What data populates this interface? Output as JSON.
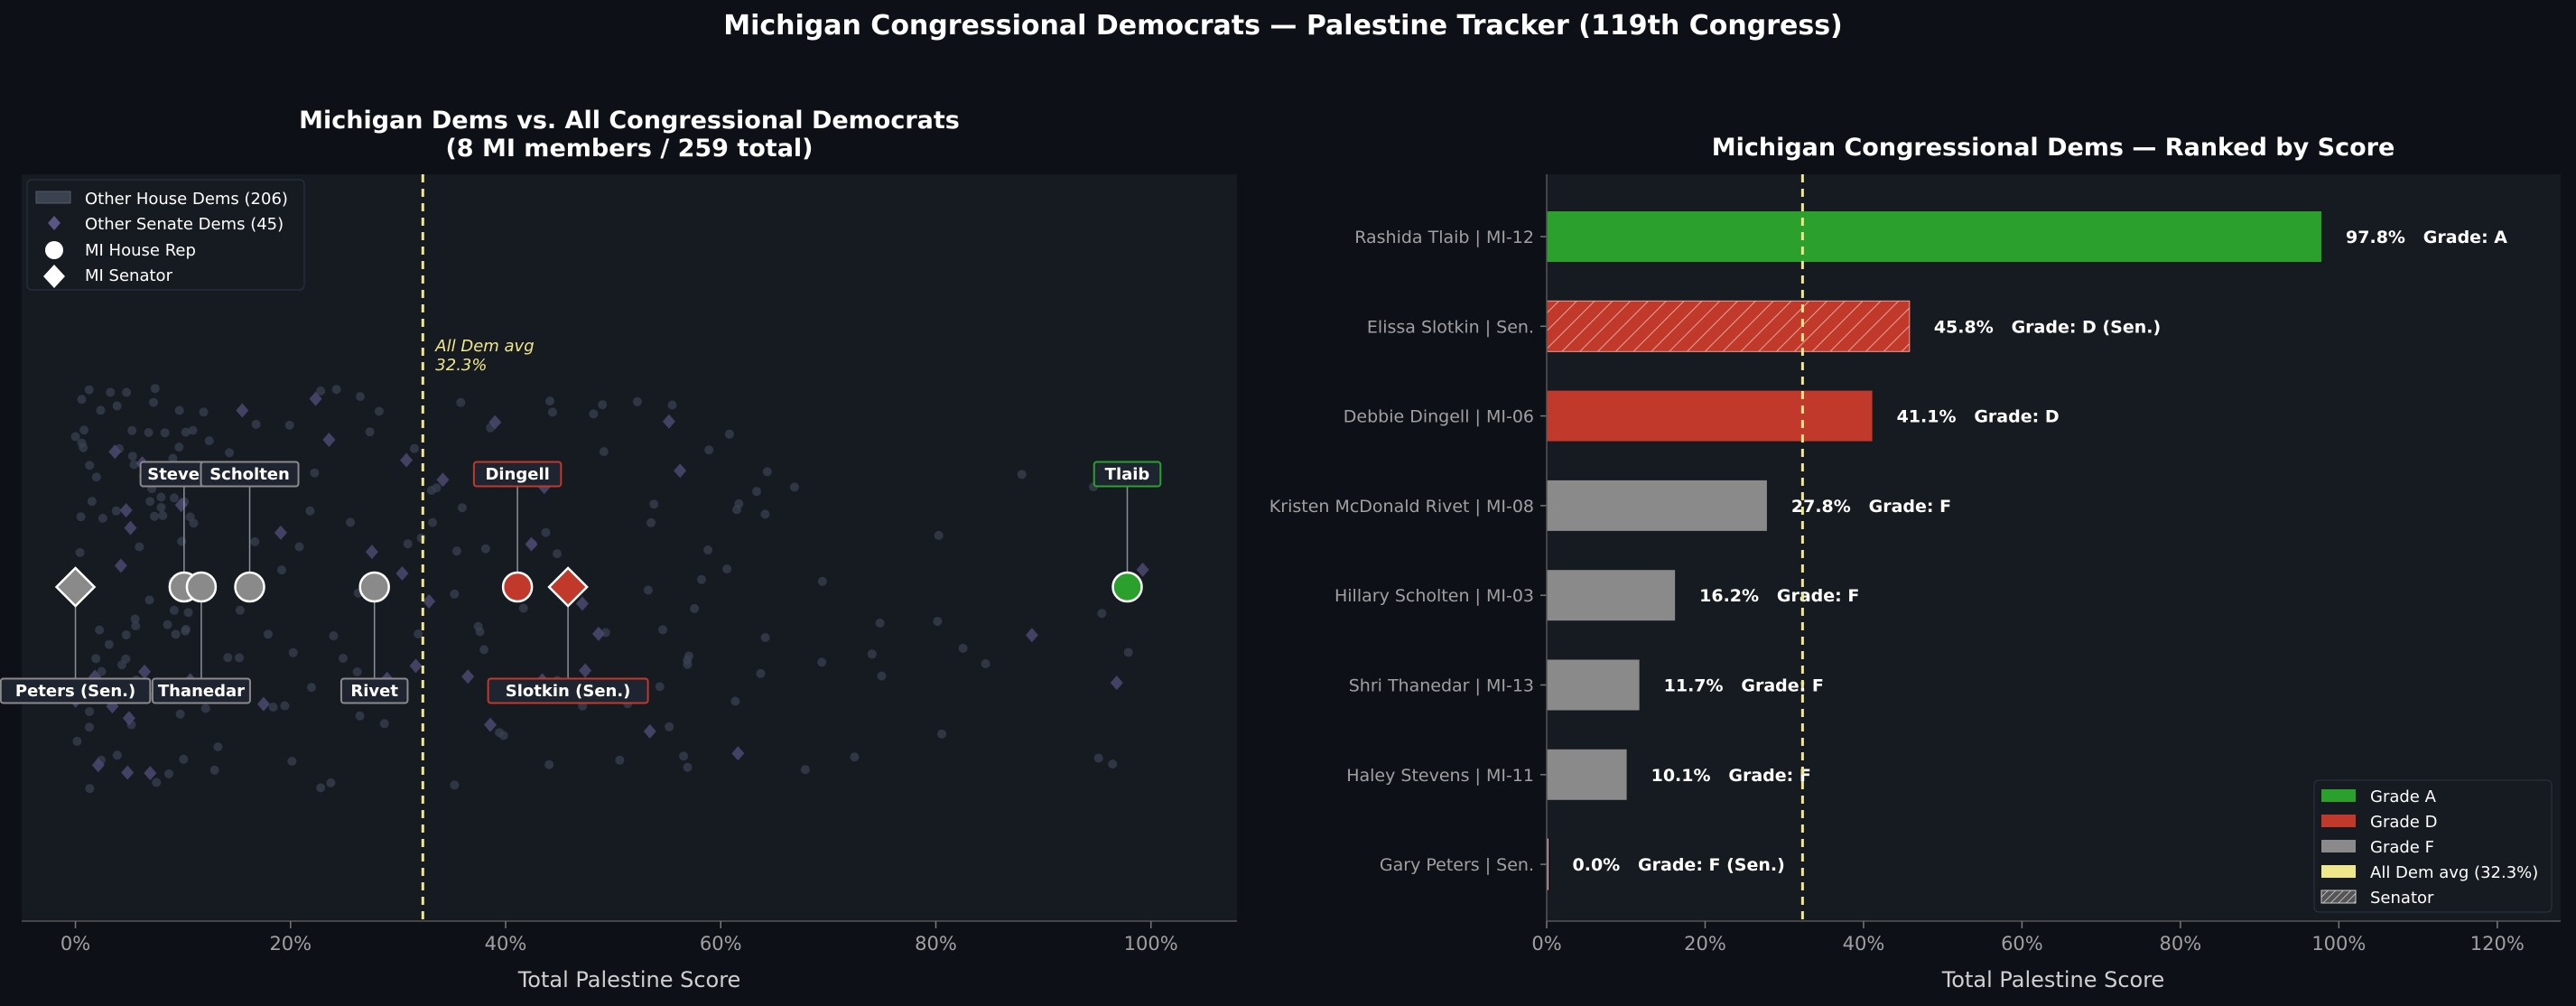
{
  "suptitle": "Michigan Congressional Democrats — Palestine Tracker (119th Congress)",
  "colors": {
    "background": "#0d1017",
    "panel": "#161b22",
    "grade_a": "#2ca02c",
    "grade_d": "#c0392b",
    "grade_f": "#8a8a8a",
    "avg_line": "#f0e68c",
    "other_dems": "#4b4870",
    "text": "#ffffff",
    "muted": "#a0a0a0"
  },
  "chart_data": [
    {
      "type": "scatter",
      "title": "Michigan Dems vs. All Congressional Democrats",
      "subtitle": "(8 MI members / 259 total)",
      "xlabel": "Total Palestine Score",
      "xlim": [
        -5,
        108
      ],
      "xticks": [
        "0%",
        "20%",
        "40%",
        "60%",
        "80%",
        "100%"
      ],
      "xtick_values": [
        0,
        20,
        40,
        60,
        80,
        100
      ],
      "avg_line": {
        "value": 32.3,
        "label_line1": "All Dem avg",
        "label_line2": "32.3%"
      },
      "legend": {
        "position": "top-left",
        "items": [
          {
            "label": "Other House Dems (206)",
            "marker": "square"
          },
          {
            "label": "Other Senate Dems (45)",
            "marker": "diamond-small"
          },
          {
            "label": "MI House Rep",
            "marker": "circle"
          },
          {
            "label": "MI Senator",
            "marker": "diamond"
          }
        ]
      },
      "mi_members": [
        {
          "label": "Peters (Sen.)",
          "score": 0.0,
          "grade": "F",
          "chamber": "senate",
          "label_pos": "below"
        },
        {
          "label": "Stevens",
          "score": 10.1,
          "grade": "F",
          "chamber": "house",
          "label_pos": "above"
        },
        {
          "label": "Thanedar",
          "score": 11.7,
          "grade": "F",
          "chamber": "house",
          "label_pos": "below"
        },
        {
          "label": "Scholten",
          "score": 16.2,
          "grade": "F",
          "chamber": "house",
          "label_pos": "above"
        },
        {
          "label": "Rivet",
          "score": 27.8,
          "grade": "F",
          "chamber": "house",
          "label_pos": "below"
        },
        {
          "label": "Dingell",
          "score": 41.1,
          "grade": "D",
          "chamber": "house",
          "label_pos": "above"
        },
        {
          "label": "Slotkin (Sen.)",
          "score": 45.8,
          "grade": "D",
          "chamber": "senate",
          "label_pos": "below"
        },
        {
          "label": "Tlaib",
          "score": 97.8,
          "grade": "A",
          "chamber": "house",
          "label_pos": "above"
        }
      ]
    },
    {
      "type": "bar",
      "orientation": "horizontal",
      "title": "Michigan Congressional Dems — Ranked by Score",
      "xlabel": "Total Palestine Score",
      "xlim": [
        0,
        128
      ],
      "xticks": [
        "0%",
        "20%",
        "40%",
        "60%",
        "80%",
        "100%",
        "120%"
      ],
      "xtick_values": [
        0,
        20,
        40,
        60,
        80,
        100,
        120
      ],
      "avg_line": {
        "value": 32.3
      },
      "categories": [
        "Rashida Tlaib  |  MI-12",
        "Elissa Slotkin  |  Sen.",
        "Debbie Dingell  |  MI-06",
        "Kristen McDonald Rivet  |  MI-08",
        "Hillary Scholten  |  MI-03",
        "Shri Thanedar  |  MI-13",
        "Haley Stevens  |  MI-11",
        "Gary Peters  |  Sen."
      ],
      "values": [
        97.8,
        45.8,
        41.1,
        27.8,
        16.2,
        11.7,
        10.1,
        0.0
      ],
      "grades": [
        "A",
        "D",
        "D",
        "F",
        "F",
        "F",
        "F",
        "F"
      ],
      "senator": [
        false,
        true,
        false,
        false,
        false,
        false,
        false,
        true
      ],
      "value_labels": [
        "97.8%   Grade: A",
        "45.8%   Grade: D (Sen.)",
        "41.1%   Grade: D",
        "27.8%   Grade: F",
        "16.2%   Grade: F",
        "11.7%   Grade: F",
        "10.1%   Grade: F",
        "0.0%   Grade: F (Sen.)"
      ],
      "legend": {
        "position": "bottom-right",
        "items": [
          {
            "label": "Grade A",
            "grade": "A"
          },
          {
            "label": "Grade D",
            "grade": "D"
          },
          {
            "label": "Grade F",
            "grade": "F"
          },
          {
            "label": "All Dem avg (32.3%)",
            "grade": "avg"
          },
          {
            "label": "Senator",
            "grade": "senator"
          }
        ]
      }
    }
  ]
}
